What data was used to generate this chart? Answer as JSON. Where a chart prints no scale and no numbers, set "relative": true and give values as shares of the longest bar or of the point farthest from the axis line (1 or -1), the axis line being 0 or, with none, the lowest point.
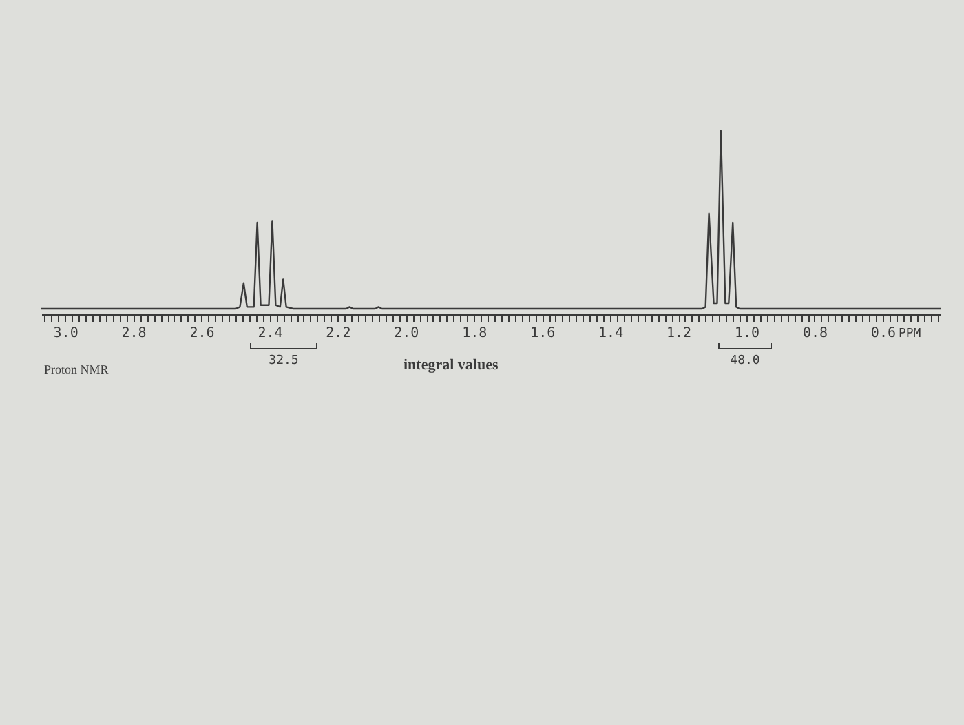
{
  "chart_data": {
    "type": "line",
    "relative": true,
    "x": [
      3.07,
      2.9,
      2.7,
      2.5,
      2.487,
      2.476,
      2.466,
      2.446,
      2.436,
      2.426,
      2.402,
      2.392,
      2.382,
      2.369,
      2.36,
      2.351,
      2.33,
      2.175,
      2.165,
      2.155,
      2.09,
      2.08,
      2.07,
      1.8,
      1.5,
      1.2,
      1.13,
      1.12,
      1.11,
      1.096,
      1.086,
      1.075,
      1.062,
      1.052,
      1.04,
      1.03,
      1.02,
      0.9,
      0.43
    ],
    "series": [
      {
        "color": "#3a3a3a",
        "values": [
          0.03,
          0.03,
          0.03,
          0.03,
          0.04,
          0.17,
          0.04,
          0.04,
          0.5,
          0.05,
          0.05,
          0.51,
          0.05,
          0.04,
          0.19,
          0.04,
          0.03,
          0.03,
          0.04,
          0.03,
          0.03,
          0.04,
          0.03,
          0.03,
          0.03,
          0.03,
          0.03,
          0.04,
          0.55,
          0.06,
          0.06,
          1,
          0.06,
          0.06,
          0.5,
          0.04,
          0.03,
          0.03,
          0.03
        ]
      }
    ],
    "xlim": [
      3.07,
      0.43
    ],
    "xticks": [
      {
        "value": 3.06,
        "label": null
      },
      {
        "value": 3.04,
        "label": null
      },
      {
        "value": 3.02,
        "label": null
      },
      {
        "value": 3.0,
        "label": "3.0"
      },
      {
        "value": 2.98,
        "label": null
      },
      {
        "value": 2.96,
        "label": null
      },
      {
        "value": 2.94,
        "label": null
      },
      {
        "value": 2.92,
        "label": null
      },
      {
        "value": 2.9,
        "label": null
      },
      {
        "value": 2.88,
        "label": null
      },
      {
        "value": 2.86,
        "label": null
      },
      {
        "value": 2.84,
        "label": null
      },
      {
        "value": 2.82,
        "label": null
      },
      {
        "value": 2.8,
        "label": "2.8"
      },
      {
        "value": 2.78,
        "label": null
      },
      {
        "value": 2.76,
        "label": null
      },
      {
        "value": 2.74,
        "label": null
      },
      {
        "value": 2.72,
        "label": null
      },
      {
        "value": 2.7,
        "label": null
      },
      {
        "value": 2.68,
        "label": null
      },
      {
        "value": 2.66,
        "label": null
      },
      {
        "value": 2.64,
        "label": null
      },
      {
        "value": 2.62,
        "label": null
      },
      {
        "value": 2.6,
        "label": "2.6"
      },
      {
        "value": 2.58,
        "label": null
      },
      {
        "value": 2.56,
        "label": null
      },
      {
        "value": 2.54,
        "label": null
      },
      {
        "value": 2.52,
        "label": null
      },
      {
        "value": 2.5,
        "label": null
      },
      {
        "value": 2.48,
        "label": null
      },
      {
        "value": 2.46,
        "label": null
      },
      {
        "value": 2.44,
        "label": null
      },
      {
        "value": 2.42,
        "label": null
      },
      {
        "value": 2.4,
        "label": "2.4"
      },
      {
        "value": 2.38,
        "label": null
      },
      {
        "value": 2.36,
        "label": null
      },
      {
        "value": 2.34,
        "label": null
      },
      {
        "value": 2.32,
        "label": null
      },
      {
        "value": 2.3,
        "label": null
      },
      {
        "value": 2.28,
        "label": null
      },
      {
        "value": 2.26,
        "label": null
      },
      {
        "value": 2.24,
        "label": null
      },
      {
        "value": 2.22,
        "label": null
      },
      {
        "value": 2.2,
        "label": "2.2"
      },
      {
        "value": 2.18,
        "label": null
      },
      {
        "value": 2.16,
        "label": null
      },
      {
        "value": 2.14,
        "label": null
      },
      {
        "value": 2.12,
        "label": null
      },
      {
        "value": 2.1,
        "label": null
      },
      {
        "value": 2.08,
        "label": null
      },
      {
        "value": 2.06,
        "label": null
      },
      {
        "value": 2.04,
        "label": null
      },
      {
        "value": 2.02,
        "label": null
      },
      {
        "value": 2.0,
        "label": "2.0"
      },
      {
        "value": 1.98,
        "label": null
      },
      {
        "value": 1.96,
        "label": null
      },
      {
        "value": 1.94,
        "label": null
      },
      {
        "value": 1.92,
        "label": null
      },
      {
        "value": 1.9,
        "label": null
      },
      {
        "value": 1.88,
        "label": null
      },
      {
        "value": 1.86,
        "label": null
      },
      {
        "value": 1.84,
        "label": null
      },
      {
        "value": 1.82,
        "label": null
      },
      {
        "value": 1.8,
        "label": "1.8"
      },
      {
        "value": 1.78,
        "label": null
      },
      {
        "value": 1.76,
        "label": null
      },
      {
        "value": 1.74,
        "label": null
      },
      {
        "value": 1.72,
        "label": null
      },
      {
        "value": 1.7,
        "label": null
      },
      {
        "value": 1.68,
        "label": null
      },
      {
        "value": 1.66,
        "label": null
      },
      {
        "value": 1.64,
        "label": null
      },
      {
        "value": 1.62,
        "label": null
      },
      {
        "value": 1.6,
        "label": "1.6"
      },
      {
        "value": 1.58,
        "label": null
      },
      {
        "value": 1.56,
        "label": null
      },
      {
        "value": 1.54,
        "label": null
      },
      {
        "value": 1.52,
        "label": null
      },
      {
        "value": 1.5,
        "label": null
      },
      {
        "value": 1.48,
        "label": null
      },
      {
        "value": 1.46,
        "label": null
      },
      {
        "value": 1.44,
        "label": null
      },
      {
        "value": 1.42,
        "label": null
      },
      {
        "value": 1.4,
        "label": "1.4"
      },
      {
        "value": 1.38,
        "label": null
      },
      {
        "value": 1.36,
        "label": null
      },
      {
        "value": 1.34,
        "label": null
      },
      {
        "value": 1.32,
        "label": null
      },
      {
        "value": 1.3,
        "label": null
      },
      {
        "value": 1.28,
        "label": null
      },
      {
        "value": 1.26,
        "label": null
      },
      {
        "value": 1.24,
        "label": null
      },
      {
        "value": 1.22,
        "label": null
      },
      {
        "value": 1.2,
        "label": "1.2"
      },
      {
        "value": 1.18,
        "label": null
      },
      {
        "value": 1.16,
        "label": null
      },
      {
        "value": 1.14,
        "label": null
      },
      {
        "value": 1.12,
        "label": null
      },
      {
        "value": 1.1,
        "label": null
      },
      {
        "value": 1.08,
        "label": null
      },
      {
        "value": 1.06,
        "label": null
      },
      {
        "value": 1.04,
        "label": null
      },
      {
        "value": 1.02,
        "label": null
      },
      {
        "value": 1.0,
        "label": "1.0"
      },
      {
        "value": 0.98,
        "label": null
      },
      {
        "value": 0.96,
        "label": null
      },
      {
        "value": 0.94,
        "label": null
      },
      {
        "value": 0.92,
        "label": null
      },
      {
        "value": 0.9,
        "label": null
      },
      {
        "value": 0.88,
        "label": null
      },
      {
        "value": 0.86,
        "label": null
      },
      {
        "value": 0.84,
        "label": null
      },
      {
        "value": 0.82,
        "label": null
      },
      {
        "value": 0.8,
        "label": "0.8"
      },
      {
        "value": 0.78,
        "label": null
      },
      {
        "value": 0.76,
        "label": null
      },
      {
        "value": 0.74,
        "label": null
      },
      {
        "value": 0.72,
        "label": null
      },
      {
        "value": 0.7,
        "label": null
      },
      {
        "value": 0.68,
        "label": null
      },
      {
        "value": 0.66,
        "label": null
      },
      {
        "value": 0.64,
        "label": null
      },
      {
        "value": 0.62,
        "label": null
      },
      {
        "value": 0.6,
        "label": "0.6"
      },
      {
        "value": 0.58,
        "label": null
      },
      {
        "value": 0.56,
        "label": null
      },
      {
        "value": 0.54,
        "label": null
      },
      {
        "value": 0.52,
        "label": null
      },
      {
        "value": 0.5,
        "label": null
      },
      {
        "value": 0.48,
        "label": null
      },
      {
        "value": 0.46,
        "label": null
      },
      {
        "value": 0.44,
        "label": null
      }
    ],
    "xlabel": "PPM",
    "annotations": [
      "Proton NMR",
      "integral values",
      "32.5",
      "48.0"
    ]
  }
}
